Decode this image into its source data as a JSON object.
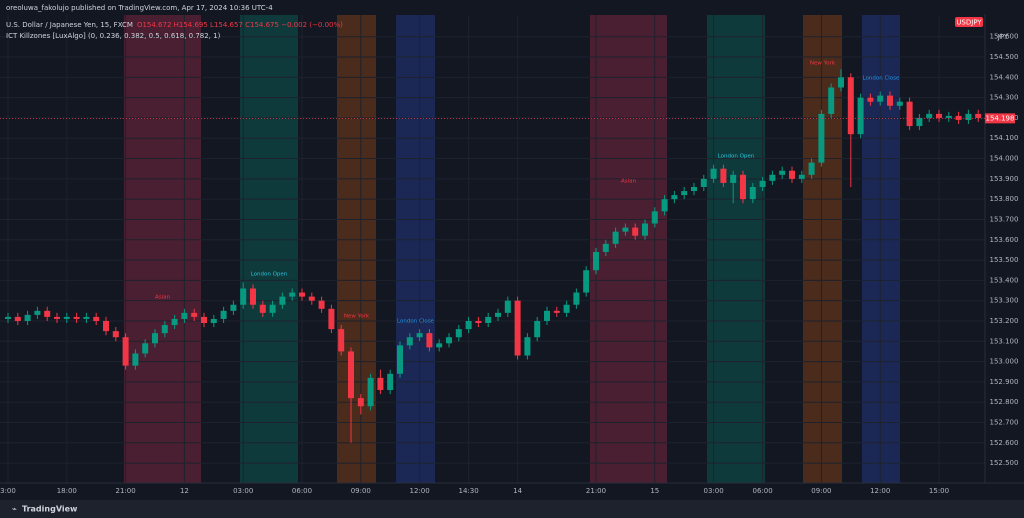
{
  "header": {
    "publisher": "oreoluwa_fakolujo published on TradingView.com, Apr 17, 2024 10:36 UTC-4",
    "symbol": "U.S. Dollar / Japanese Yen, 15, FXCM",
    "ohlc": "O154.672 H154.695 L154.657 C154.675 −0.002 (−0.00%)",
    "indicator": "ICT Killzones [LuxAlgo] (0, 0.236, 0.382, 0.5, 0.618, 0.782, 1)",
    "ticker_badge": "USDJPY",
    "currency": "JPY"
  },
  "footer": {
    "brand": "TradingView"
  },
  "chart_data": {
    "type": "candlestick",
    "up_color": "#089981",
    "down_color": "#f23645",
    "grid": true,
    "ylim": [
      152.402,
      154.707
    ],
    "yticks": [
      {
        "value": 152.5,
        "label": "152.500"
      },
      {
        "value": 152.6,
        "label": "152.600"
      },
      {
        "value": 152.7,
        "label": "152.700"
      },
      {
        "value": 152.8,
        "label": "152.800"
      },
      {
        "value": 152.9,
        "label": "152.900"
      },
      {
        "value": 153.0,
        "label": "153.000"
      },
      {
        "value": 153.1,
        "label": "153.100"
      },
      {
        "value": 153.2,
        "label": "153.200"
      },
      {
        "value": 153.3,
        "label": "153.300"
      },
      {
        "value": 153.4,
        "label": "153.400"
      },
      {
        "value": 153.5,
        "label": "153.500"
      },
      {
        "value": 153.6,
        "label": "153.600"
      },
      {
        "value": 153.7,
        "label": "153.700"
      },
      {
        "value": 153.8,
        "label": "153.800"
      },
      {
        "value": 153.9,
        "label": "153.900"
      },
      {
        "value": 154.0,
        "label": "154.000"
      },
      {
        "value": 154.1,
        "label": "154.100"
      },
      {
        "value": 154.2,
        "label": "154.200"
      },
      {
        "value": 154.3,
        "label": "154.300"
      },
      {
        "value": 154.4,
        "label": "154.400"
      },
      {
        "value": 154.5,
        "label": "154.500"
      },
      {
        "value": 154.6,
        "label": "154.600"
      }
    ],
    "last_price": 154.198,
    "categories": [
      "3:00",
      null,
      null,
      null,
      null,
      null,
      "18:00",
      null,
      null,
      null,
      null,
      null,
      "21:00",
      null,
      null,
      null,
      null,
      null,
      "12",
      null,
      null,
      null,
      null,
      null,
      "03:00",
      null,
      null,
      null,
      null,
      null,
      "06:00",
      null,
      null,
      null,
      null,
      null,
      "09:00",
      null,
      null,
      null,
      null,
      null,
      "12:00",
      null,
      null,
      null,
      null,
      "14:30",
      null,
      null,
      null,
      null,
      "14",
      null,
      null,
      null,
      null,
      null,
      null,
      null,
      "21:00",
      null,
      null,
      null,
      null,
      null,
      "15",
      null,
      null,
      null,
      null,
      null,
      "03:00",
      null,
      null,
      null,
      null,
      "06:00",
      null,
      null,
      null,
      null,
      null,
      "09:00",
      null,
      null,
      null,
      null,
      null,
      "12:00",
      null,
      null,
      null,
      null,
      null,
      "15:00",
      null,
      null,
      null,
      null
    ],
    "open": [
      153.21,
      153.22,
      153.2,
      153.23,
      153.25,
      153.22,
      153.21,
      153.22,
      153.21,
      153.22,
      153.2,
      153.15,
      153.12,
      152.98,
      153.04,
      153.09,
      153.14,
      153.18,
      153.21,
      153.24,
      153.22,
      153.19,
      153.21,
      153.25,
      153.28,
      153.36,
      153.28,
      153.24,
      153.28,
      153.32,
      153.34,
      153.32,
      153.3,
      153.26,
      153.16,
      153.05,
      152.82,
      152.78,
      152.92,
      152.86,
      152.94,
      153.08,
      153.12,
      153.14,
      153.07,
      153.09,
      153.12,
      153.16,
      153.2,
      153.19,
      153.22,
      153.24,
      153.3,
      153.03,
      153.12,
      153.2,
      153.25,
      153.24,
      153.28,
      153.34,
      153.45,
      153.54,
      153.58,
      153.64,
      153.66,
      153.62,
      153.68,
      153.74,
      153.8,
      153.82,
      153.84,
      153.86,
      153.9,
      153.95,
      153.88,
      153.92,
      153.8,
      153.86,
      153.89,
      153.92,
      153.94,
      153.9,
      153.92,
      153.98,
      154.22,
      154.35,
      154.4,
      154.12,
      154.3,
      154.28,
      154.31,
      154.26,
      154.28,
      154.16,
      154.2,
      154.22,
      154.2,
      154.21,
      154.19,
      154.22
    ],
    "high": [
      153.24,
      153.24,
      153.25,
      153.27,
      153.27,
      153.24,
      153.24,
      153.24,
      153.24,
      153.24,
      153.22,
      153.17,
      153.14,
      153.06,
      153.11,
      153.16,
      153.2,
      153.23,
      153.26,
      153.26,
      153.24,
      153.23,
      153.27,
      153.3,
      153.39,
      153.38,
      153.3,
      153.3,
      153.34,
      153.36,
      153.36,
      153.34,
      153.32,
      153.28,
      153.18,
      153.07,
      152.84,
      152.94,
      152.96,
      152.96,
      153.1,
      153.14,
      153.16,
      153.16,
      153.11,
      153.14,
      153.18,
      153.22,
      153.22,
      153.24,
      153.26,
      153.32,
      153.32,
      153.14,
      153.22,
      153.27,
      153.27,
      153.3,
      153.36,
      153.47,
      153.56,
      153.6,
      153.66,
      153.68,
      153.68,
      153.7,
      153.76,
      153.82,
      153.84,
      153.86,
      153.88,
      153.92,
      153.97,
      153.97,
      153.94,
      153.94,
      153.88,
      153.91,
      153.94,
      153.96,
      153.96,
      153.94,
      154.0,
      154.24,
      154.37,
      154.44,
      154.42,
      154.32,
      154.32,
      154.33,
      154.33,
      154.3,
      154.3,
      154.22,
      154.24,
      154.24,
      154.23,
      154.23,
      154.24,
      154.24
    ],
    "low": [
      153.19,
      153.18,
      153.18,
      153.21,
      153.2,
      153.19,
      153.19,
      153.19,
      153.19,
      153.18,
      153.13,
      153.1,
      152.96,
      152.96,
      153.02,
      153.07,
      153.12,
      153.16,
      153.19,
      153.2,
      153.17,
      153.17,
      153.19,
      153.23,
      153.26,
      153.26,
      153.22,
      153.22,
      153.26,
      153.3,
      153.3,
      153.28,
      153.24,
      153.14,
      153.03,
      152.6,
      152.74,
      152.76,
      152.84,
      152.84,
      152.92,
      153.06,
      153.1,
      153.05,
      153.05,
      153.07,
      153.1,
      153.14,
      153.17,
      153.17,
      153.2,
      153.22,
      153.01,
      153.01,
      153.1,
      153.18,
      153.22,
      153.22,
      153.26,
      153.32,
      153.43,
      153.52,
      153.56,
      153.62,
      153.6,
      153.6,
      153.66,
      153.72,
      153.78,
      153.8,
      153.82,
      153.84,
      153.88,
      153.86,
      153.78,
      153.78,
      153.78,
      153.84,
      153.87,
      153.9,
      153.88,
      153.88,
      153.9,
      153.96,
      154.2,
      154.33,
      153.86,
      154.1,
      154.26,
      154.26,
      154.24,
      154.24,
      154.14,
      154.14,
      154.18,
      154.18,
      154.18,
      154.17,
      154.17,
      154.18
    ],
    "close": [
      153.22,
      153.2,
      153.23,
      153.25,
      153.22,
      153.21,
      153.22,
      153.21,
      153.22,
      153.2,
      153.15,
      153.12,
      152.98,
      153.04,
      153.09,
      153.14,
      153.18,
      153.21,
      153.24,
      153.22,
      153.19,
      153.21,
      153.25,
      153.28,
      153.36,
      153.28,
      153.24,
      153.28,
      153.32,
      153.34,
      153.32,
      153.3,
      153.26,
      153.16,
      153.05,
      152.82,
      152.78,
      152.92,
      152.86,
      152.94,
      153.08,
      153.12,
      153.14,
      153.07,
      153.09,
      153.12,
      153.16,
      153.2,
      153.19,
      153.22,
      153.24,
      153.3,
      153.03,
      153.12,
      153.2,
      153.25,
      153.24,
      153.28,
      153.34,
      153.45,
      153.54,
      153.58,
      153.64,
      153.66,
      153.62,
      153.68,
      153.74,
      153.8,
      153.82,
      153.84,
      153.86,
      153.9,
      153.95,
      153.88,
      153.92,
      153.8,
      153.86,
      153.89,
      153.92,
      153.94,
      153.9,
      153.92,
      153.98,
      154.22,
      154.35,
      154.4,
      154.12,
      154.3,
      154.28,
      154.31,
      154.26,
      154.28,
      154.16,
      154.2,
      154.22,
      154.2,
      154.21,
      154.19,
      154.22,
      154.2
    ],
    "killzones": [
      {
        "label": "Asian",
        "color": "#4a1f32",
        "text_color": "#f23645"
      },
      {
        "label": "London Open",
        "color": "#0f3a3c",
        "text_color": "#26c6da"
      },
      {
        "label": "New York",
        "color": "#4a2b1c",
        "text_color": "#f23645"
      },
      {
        "label": "London Close",
        "color": "#1b2856",
        "text_color": "#2196f3"
      },
      {
        "label": "Asian",
        "color": "#4a1f32",
        "text_color": "#f23645"
      },
      {
        "label": "London Open",
        "color": "#0f3a3c",
        "text_color": "#26c6da"
      },
      {
        "label": "New York",
        "color": "#4a2b1c",
        "text_color": "#f23645"
      },
      {
        "label": "London Close",
        "color": "#1b2856",
        "text_color": "#2196f3"
      }
    ]
  }
}
